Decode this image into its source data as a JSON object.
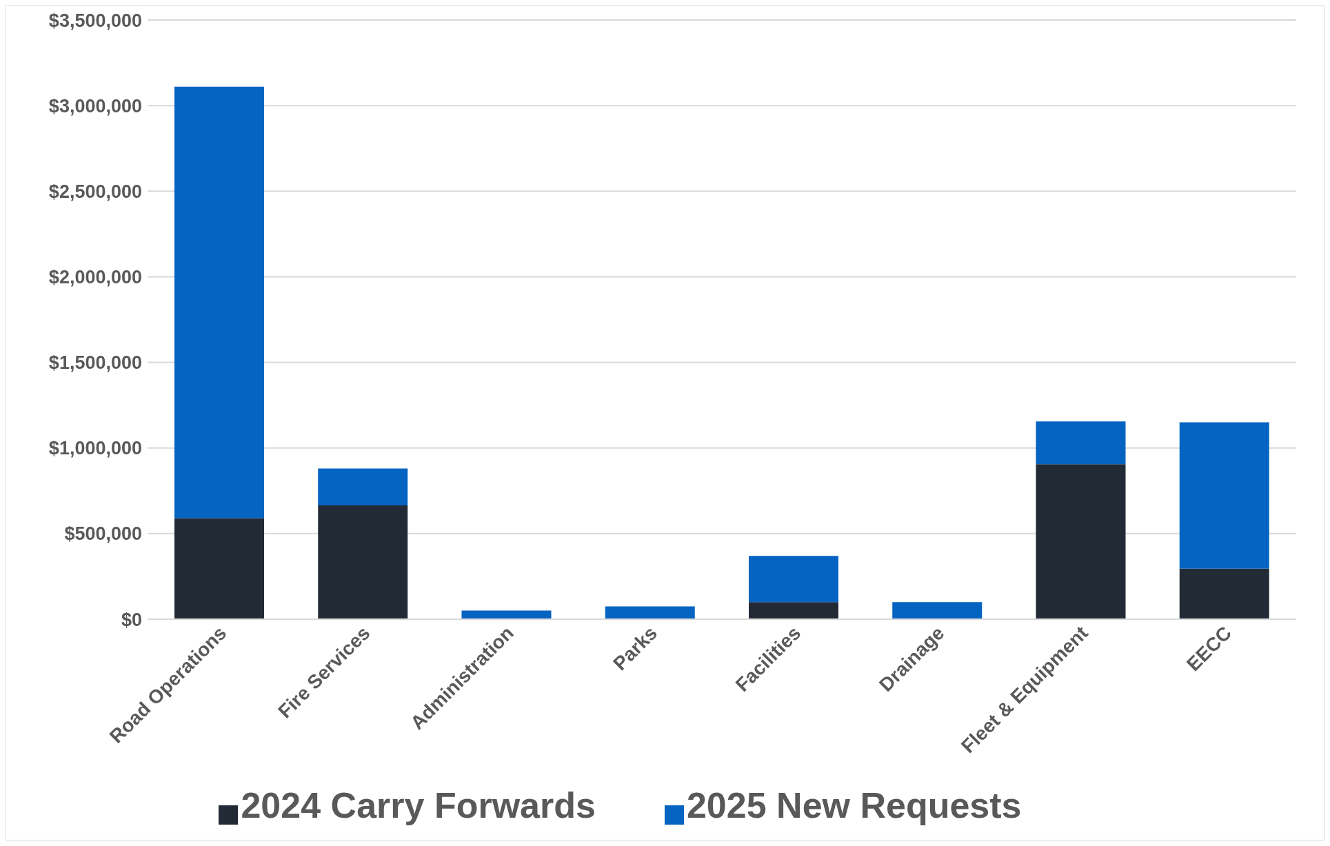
{
  "chart_data": {
    "type": "bar",
    "stacked": true,
    "categories": [
      "Road Operations",
      "Fire Services",
      "Administration",
      "Parks",
      "Facilities",
      "Drainage",
      "Fleet & Equipment",
      "EECC"
    ],
    "series": [
      {
        "name": "2024 Carry Forwards",
        "color": "#222a35",
        "values": [
          590000,
          665000,
          0,
          0,
          100000,
          0,
          905000,
          295000
        ]
      },
      {
        "name": "2025 New Requests",
        "color": "#0563c1",
        "values": [
          2520000,
          215000,
          50000,
          75000,
          270000,
          100000,
          250000,
          855000
        ]
      }
    ],
    "ylim": [
      0,
      3500000
    ],
    "yticks": [
      {
        "value": 0,
        "label": "$0"
      },
      {
        "value": 500000,
        "label": "$500,000"
      },
      {
        "value": 1000000,
        "label": "$1,000,000"
      },
      {
        "value": 1500000,
        "label": "$1,500,000"
      },
      {
        "value": 2000000,
        "label": "$2,000,000"
      },
      {
        "value": 2500000,
        "label": "$2,500,000"
      },
      {
        "value": 3000000,
        "label": "$3,000,000"
      },
      {
        "value": 3500000,
        "label": "$3,500,000"
      }
    ],
    "grid": "y",
    "legend": "bottom"
  }
}
